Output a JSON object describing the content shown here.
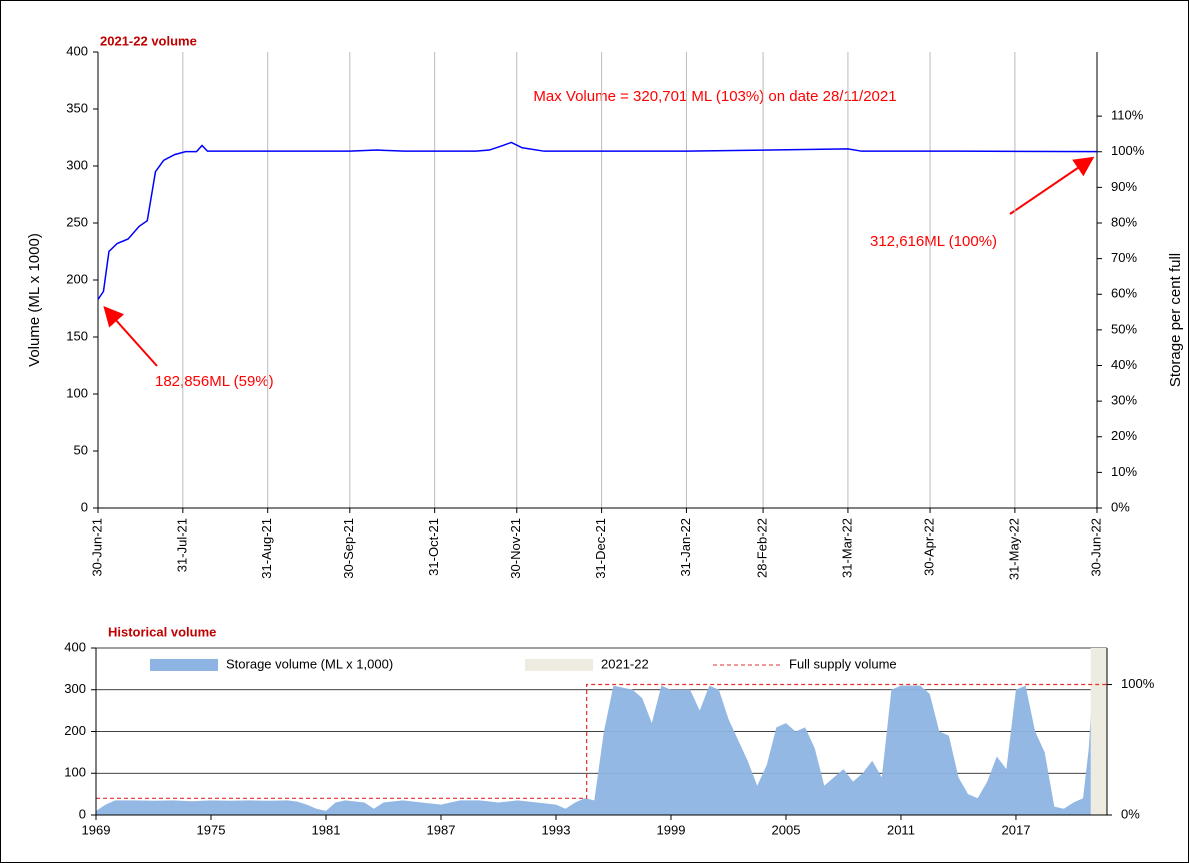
{
  "chart_data": [
    {
      "type": "line",
      "title": "2021-22 volume",
      "ylabel": "Volume (ML x 1000)",
      "y2label": "Storage per cent full",
      "x": [
        "2021-06-30",
        "2021-07-02",
        "2021-07-04",
        "2021-07-07",
        "2021-07-11",
        "2021-07-15",
        "2021-07-18",
        "2021-07-21",
        "2021-07-24",
        "2021-07-28",
        "2021-08-01",
        "2021-08-05",
        "2021-08-07",
        "2021-08-09",
        "2021-08-31",
        "2021-09-30",
        "2021-10-10",
        "2021-10-20",
        "2021-11-15",
        "2021-11-20",
        "2021-11-25",
        "2021-11-28",
        "2021-12-02",
        "2021-12-10",
        "2022-01-31",
        "2022-03-31",
        "2022-04-05",
        "2022-05-10",
        "2022-06-30"
      ],
      "series": [
        {
          "name": "2021-22 volume",
          "color": "#0000ff",
          "values": [
            182.9,
            190,
            225,
            232,
            236,
            247,
            252,
            295,
            305,
            310,
            312.6,
            312.6,
            318,
            313,
            313,
            313,
            314,
            313,
            313,
            314,
            318,
            320.7,
            316,
            313,
            313,
            315,
            313,
            313,
            312.6
          ]
        }
      ],
      "xlim": [
        "2021-06-30",
        "2022-06-30"
      ],
      "xticks": [
        {
          "value": "2021-06-30",
          "label": "30-Jun-21"
        },
        {
          "value": "2021-07-31",
          "label": "31-Jul-21"
        },
        {
          "value": "2021-08-31",
          "label": "31-Aug-21"
        },
        {
          "value": "2021-09-30",
          "label": "30-Sep-21"
        },
        {
          "value": "2021-10-31",
          "label": "31-Oct-21"
        },
        {
          "value": "2021-11-30",
          "label": "30-Nov-21"
        },
        {
          "value": "2021-12-31",
          "label": "31-Dec-21"
        },
        {
          "value": "2022-01-31",
          "label": "31-Jan-22"
        },
        {
          "value": "2022-02-28",
          "label": "28-Feb-22"
        },
        {
          "value": "2022-03-31",
          "label": "31-Mar-22"
        },
        {
          "value": "2022-04-30",
          "label": "30-Apr-22"
        },
        {
          "value": "2022-05-31",
          "label": "31-May-22"
        },
        {
          "value": "2022-06-30",
          "label": "30-Jun-22"
        }
      ],
      "ylim": [
        0,
        400
      ],
      "yticks": [
        0,
        50,
        100,
        150,
        200,
        250,
        300,
        350,
        400
      ],
      "y2lim": [
        0,
        128
      ],
      "y2ticks": [
        {
          "value": 0,
          "label": "0%"
        },
        {
          "value": 10,
          "label": "10%"
        },
        {
          "value": 20,
          "label": "20%"
        },
        {
          "value": 30,
          "label": "30%"
        },
        {
          "value": 40,
          "label": "40%"
        },
        {
          "value": 50,
          "label": "50%"
        },
        {
          "value": 60,
          "label": "60%"
        },
        {
          "value": 70,
          "label": "70%"
        },
        {
          "value": 80,
          "label": "80%"
        },
        {
          "value": 90,
          "label": "90%"
        },
        {
          "value": 100,
          "label": "100%"
        },
        {
          "value": 110,
          "label": "110%"
        }
      ],
      "grid": "x",
      "annotations": [
        "Max Volume = 320,701 ML (103%) on date 28/11/2021",
        "182,856ML (59%)",
        "312,616ML (100%)"
      ]
    },
    {
      "type": "area",
      "title": "Historical volume",
      "series": [
        {
          "name": "Storage volume (ML x 1,000)",
          "kind": "area",
          "color": "#8eb4e3",
          "x": [
            1969,
            1969.5,
            1970,
            1971,
            1972,
            1973,
            1974,
            1975,
            1976,
            1977,
            1978,
            1979,
            1979.5,
            1980,
            1980.5,
            1981,
            1981.5,
            1982,
            1983,
            1983.5,
            1984,
            1985,
            1986,
            1987,
            1987.5,
            1988,
            1989,
            1990,
            1991,
            1992,
            1993,
            1993.5,
            1994,
            1994.5,
            1995,
            1995.5,
            1996,
            1997,
            1997.5,
            1998,
            1998.5,
            1999,
            2000,
            2000.5,
            2001,
            2001.5,
            2002,
            2002.5,
            2003,
            2003.5,
            2004,
            2004.5,
            2005,
            2005.5,
            2006,
            2006.5,
            2007,
            2007.5,
            2008,
            2008.5,
            2009,
            2009.5,
            2010,
            2010.5,
            2011,
            2012,
            2012.5,
            2013,
            2013.5,
            2014,
            2014.5,
            2015,
            2015.5,
            2016,
            2016.5,
            2017,
            2017.5,
            2018,
            2018.5,
            2019,
            2019.5,
            2020,
            2020.5,
            2020.8,
            2021,
            2021.75
          ],
          "values": [
            10,
            25,
            35,
            35,
            34,
            35,
            33,
            35,
            34,
            35,
            34,
            35,
            32,
            25,
            15,
            10,
            30,
            35,
            30,
            15,
            30,
            35,
            30,
            25,
            30,
            35,
            35,
            30,
            35,
            30,
            25,
            15,
            30,
            40,
            35,
            200,
            310,
            300,
            280,
            220,
            310,
            300,
            300,
            250,
            310,
            300,
            230,
            180,
            130,
            70,
            120,
            210,
            220,
            200,
            210,
            160,
            70,
            90,
            110,
            80,
            100,
            130,
            90,
            300,
            310,
            310,
            290,
            200,
            190,
            90,
            50,
            40,
            80,
            140,
            110,
            300,
            310,
            200,
            150,
            20,
            15,
            30,
            40,
            160,
            310,
            312
          ]
        },
        {
          "name": "2021-22",
          "kind": "band",
          "color": "#eeece1",
          "x": [
            2020.9,
            2021.75
          ]
        },
        {
          "name": "Full supply volume",
          "kind": "dashed",
          "color": "#e03030",
          "x": [
            1969,
            1994.6,
            1994.6,
            2021.75
          ],
          "values": [
            40,
            40,
            312.6,
            312.6
          ]
        }
      ],
      "xlim": [
        1969,
        2021.75
      ],
      "xticks": [
        1969,
        1975,
        1981,
        1987,
        1993,
        1999,
        2005,
        2011,
        2017
      ],
      "ylim": [
        0,
        400
      ],
      "yticks": [
        0,
        100,
        200,
        300,
        400
      ],
      "y2lim": [
        0,
        128
      ],
      "y2ticks": [
        {
          "value": 0,
          "label": "0%"
        },
        {
          "value": 100,
          "label": "100%"
        }
      ],
      "grid": "y"
    }
  ]
}
